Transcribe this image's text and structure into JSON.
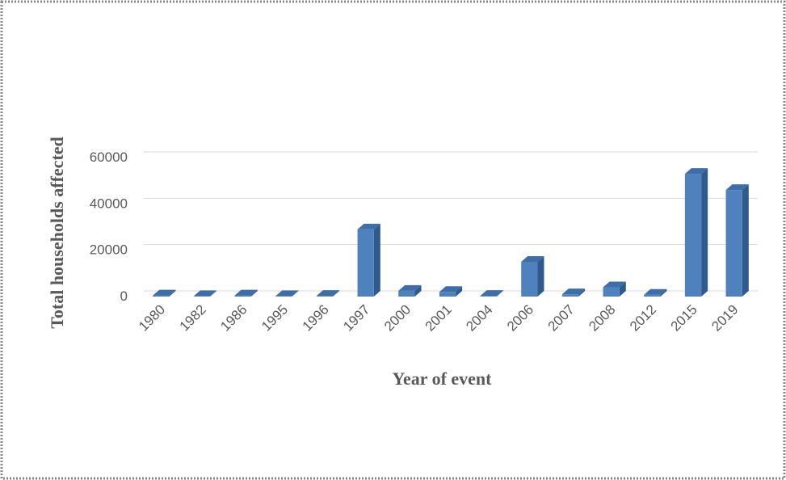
{
  "chart_data": {
    "type": "bar",
    "x_label": "Year of event",
    "y_label": "Total households affected",
    "categories": [
      "1980",
      "1982",
      "1986",
      "1995",
      "1996",
      "1997",
      "2000",
      "2001",
      "2004",
      "2006",
      "2007",
      "2008",
      "2012",
      "2015",
      "2019"
    ],
    "values": [
      500,
      200,
      500,
      200,
      300,
      29000,
      2500,
      2000,
      300,
      15000,
      1000,
      4000,
      800,
      53000,
      46000
    ],
    "color": "#4f81bd",
    "ylim": [
      0,
      60000
    ],
    "yticks": [
      0,
      20000,
      40000,
      60000
    ],
    "grid": true
  }
}
